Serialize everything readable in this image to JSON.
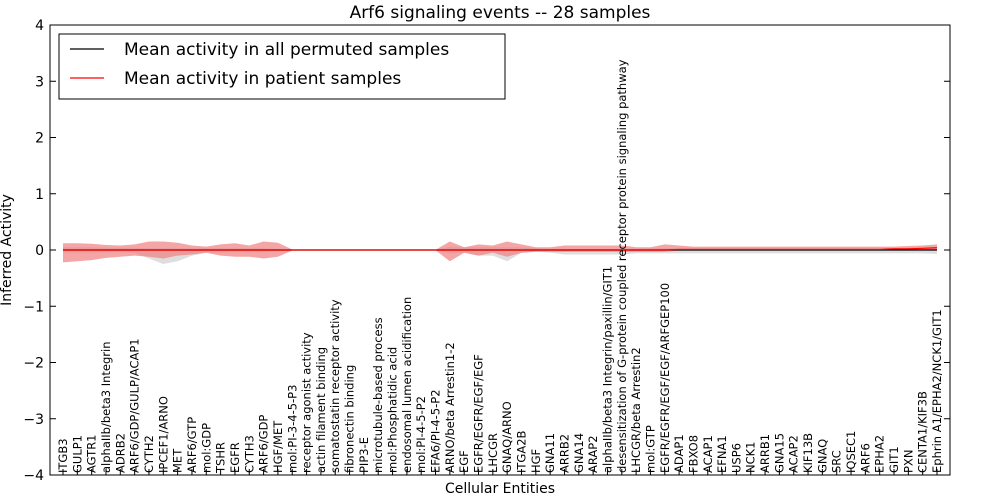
{
  "chart_data": {
    "type": "line",
    "title": "Arf6 signaling events -- 28 samples",
    "xlabel": "Cellular Entities",
    "ylabel": "Inferred Activity",
    "ylim": [
      -4,
      4
    ],
    "yticks": [
      "4",
      "3",
      "2",
      "1",
      "0",
      "−1",
      "−2",
      "−3",
      "−4"
    ],
    "grid": false,
    "legend_position": "top-left",
    "categories": [
      "ITGB3",
      "GULP1",
      "AGTR1",
      "alphaIIb/beta3 Integrin",
      "ADRB2",
      "ARF6/GDP/GULP/ACAP1",
      "CYTH2",
      "IPCEF1/ARNO",
      "MET",
      "ARF6/GTP",
      "mol:GDP",
      "TSHR",
      "EGFR",
      "CYTH3",
      "ARF6/GDP",
      "HGF/MET",
      "mol:PI-3-4-5-P3",
      "receptor agonist activity",
      "actin filament binding",
      "somatostatin receptor activity",
      "fibronectin binding",
      "PIP3-E",
      "microtubule-based process",
      "mol:Phosphatidic acid",
      "endosomal lumen acidification",
      "mol:PI-4-5-P2",
      "EFA6/PI-4-5-P2",
      "ARNO/beta Arrestin1-2",
      "EGF",
      "EGFR/EGFR/EGF/EGF",
      "LHCGR",
      "GNAQ/ARNO",
      "ITGA2B",
      "HGF",
      "GNA11",
      "ARRB2",
      "GNA14",
      "ARAP2",
      "alphaIIb/beta3 Integrin/paxillin/GIT1",
      "desensitization of G-protein coupled receptor protein signaling pathway",
      "LHCGR/beta Arrestin2",
      "mol:GTP",
      "EGFR/EGFR/EGF/EGF/ARFGEP100",
      "ADAP1",
      "FBXO8",
      "ACAP1",
      "EFNA1",
      "USP6",
      "NCK1",
      "ARRB1",
      "GNA15",
      "ACAP2",
      "KIF13B",
      "GNAQ",
      "SRC",
      "IQSEC1",
      "ARF6",
      "EPHA2",
      "GIT1",
      "PXN",
      "CENTA1/KIF3B",
      "Ephrin A1/EPHA2/NCK1/GIT1"
    ],
    "series": [
      {
        "name": "Mean activity in all permuted samples",
        "color": "#000000",
        "band_color": "#d3d3d3",
        "values": [
          0,
          0,
          0,
          0,
          0,
          0,
          0,
          0,
          0,
          0,
          0,
          0,
          0,
          0,
          0,
          0,
          0,
          0,
          0,
          0,
          0,
          0,
          0,
          0,
          0,
          0,
          0,
          0,
          0,
          0,
          0,
          0,
          0,
          0,
          0,
          0,
          0,
          0,
          0,
          0,
          0,
          0,
          0,
          0,
          0,
          0,
          0,
          0,
          0,
          0,
          0,
          0,
          0,
          0,
          0,
          0,
          0,
          0,
          0,
          0,
          0,
          0
        ],
        "band_upper": [
          0.05,
          0.05,
          0.05,
          0.04,
          0.04,
          0.04,
          0.03,
          0.03,
          0.03,
          0.03,
          0.03,
          0.03,
          0.03,
          0.03,
          0.03,
          0.02,
          0.005,
          0.005,
          0.005,
          0.005,
          0.005,
          0.005,
          0.005,
          0.005,
          0.005,
          0.005,
          0.005,
          0.06,
          0.05,
          0.05,
          0.05,
          0.05,
          0.05,
          0.03,
          0.02,
          0.02,
          0.02,
          0.02,
          0.02,
          0.02,
          0.02,
          0.03,
          0.03,
          0.04,
          0.04,
          0.04,
          0.04,
          0.04,
          0.04,
          0.04,
          0.04,
          0.04,
          0.04,
          0.04,
          0.04,
          0.04,
          0.04,
          0.04,
          0.04,
          0.04,
          0.04,
          0.04
        ],
        "band_lower": [
          -0.05,
          -0.05,
          -0.05,
          -0.04,
          -0.04,
          -0.05,
          -0.15,
          -0.25,
          -0.2,
          -0.1,
          -0.05,
          -0.05,
          -0.04,
          -0.04,
          -0.04,
          -0.02,
          -0.005,
          -0.005,
          -0.005,
          -0.005,
          -0.005,
          -0.005,
          -0.005,
          -0.005,
          -0.005,
          -0.005,
          -0.005,
          -0.06,
          -0.05,
          -0.1,
          -0.1,
          -0.2,
          -0.05,
          -0.03,
          -0.05,
          -0.08,
          -0.08,
          -0.08,
          -0.08,
          -0.08,
          -0.06,
          -0.06,
          -0.06,
          -0.06,
          -0.06,
          -0.06,
          -0.06,
          -0.06,
          -0.06,
          -0.06,
          -0.06,
          -0.06,
          -0.06,
          -0.06,
          -0.06,
          -0.06,
          -0.06,
          -0.06,
          -0.06,
          -0.06,
          -0.06,
          -0.07
        ]
      },
      {
        "name": "Mean activity in patient samples",
        "color": "#ff0000",
        "band_color": "#f08080",
        "values": [
          0.0,
          0.0,
          0.0,
          0.0,
          0.0,
          0.0,
          0.0,
          0.0,
          0.0,
          0.0,
          0.0,
          0.0,
          0.0,
          0.0,
          0.0,
          0.0,
          0.0,
          0.0,
          0.0,
          0.0,
          0.0,
          0.0,
          0.0,
          0.0,
          0.0,
          0.0,
          0.0,
          0.0,
          0.0,
          0.0,
          0.0,
          0.0,
          0.0,
          0.0,
          0.0,
          0.0,
          0.0,
          0.0,
          0.0,
          0.0,
          0.0,
          0.0,
          0.0,
          0.01,
          0.01,
          0.01,
          0.01,
          0.01,
          0.01,
          0.01,
          0.01,
          0.01,
          0.01,
          0.01,
          0.01,
          0.01,
          0.01,
          0.01,
          0.02,
          0.02,
          0.03,
          0.04
        ],
        "band_upper": [
          0.12,
          0.12,
          0.11,
          0.09,
          0.08,
          0.1,
          0.15,
          0.15,
          0.13,
          0.08,
          0.06,
          0.1,
          0.12,
          0.08,
          0.15,
          0.13,
          0.01,
          0.005,
          0.005,
          0.005,
          0.005,
          0.005,
          0.005,
          0.005,
          0.005,
          0.005,
          0.005,
          0.15,
          0.05,
          0.1,
          0.08,
          0.15,
          0.1,
          0.05,
          0.05,
          0.08,
          0.08,
          0.08,
          0.08,
          0.08,
          0.05,
          0.05,
          0.1,
          0.08,
          0.06,
          0.06,
          0.06,
          0.06,
          0.06,
          0.06,
          0.06,
          0.06,
          0.06,
          0.06,
          0.06,
          0.06,
          0.06,
          0.06,
          0.06,
          0.07,
          0.08,
          0.1
        ],
        "band_lower": [
          -0.22,
          -0.2,
          -0.18,
          -0.14,
          -0.12,
          -0.1,
          -0.12,
          -0.15,
          -0.1,
          -0.08,
          -0.05,
          -0.1,
          -0.12,
          -0.12,
          -0.15,
          -0.12,
          -0.01,
          -0.005,
          -0.005,
          -0.005,
          -0.005,
          -0.005,
          -0.005,
          -0.005,
          -0.005,
          -0.005,
          -0.005,
          -0.2,
          -0.05,
          -0.1,
          -0.05,
          -0.12,
          -0.05,
          -0.03,
          -0.03,
          -0.03,
          -0.03,
          -0.03,
          -0.03,
          -0.03,
          -0.03,
          -0.03,
          -0.03,
          -0.01,
          -0.01,
          -0.01,
          -0.01,
          -0.01,
          -0.01,
          -0.01,
          -0.01,
          -0.01,
          -0.01,
          -0.01,
          -0.01,
          -0.01,
          -0.01,
          -0.01,
          -0.01,
          0.0,
          0.0,
          0.0
        ]
      }
    ]
  }
}
